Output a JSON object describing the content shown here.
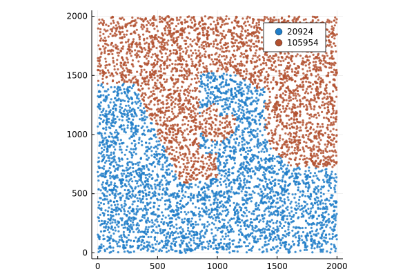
{
  "chart_data": {
    "type": "scatter",
    "title": "",
    "xlabel": "",
    "ylabel": "",
    "xlim": [
      -50,
      2050
    ],
    "ylim": [
      -50,
      2050
    ],
    "xticks": [
      0,
      500,
      1000,
      1500,
      2000
    ],
    "yticks": [
      0,
      500,
      1000,
      1500,
      2000
    ],
    "xtick_labels": [
      "0",
      "500",
      "1000",
      "1500",
      "2000"
    ],
    "ytick_labels": [
      "0",
      "500",
      "1000",
      "1500",
      "2000"
    ],
    "grid": true,
    "legend": {
      "position": "top-right"
    },
    "series": [
      {
        "name": "20924",
        "color": "#1f7dc8"
      },
      {
        "name": "105954",
        "color": "#b2502f"
      }
    ]
  }
}
